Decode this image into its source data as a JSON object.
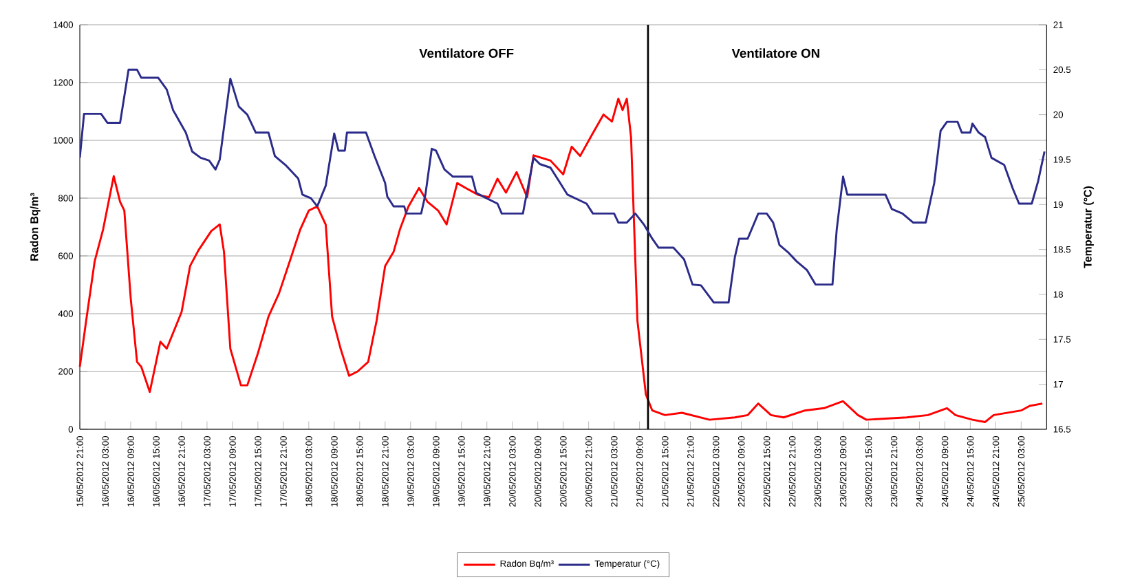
{
  "chart_data": {
    "type": "line",
    "ylabel": "Radon Bq/m³",
    "y2label": "Temperatur (°C)",
    "xlim": [
      "2012-05-15T21:00",
      "2012-05-25T09:00"
    ],
    "ylim": [
      0,
      1400
    ],
    "yticks": [
      0,
      200,
      400,
      600,
      800,
      1000,
      1200,
      1400
    ],
    "y2lim": [
      16.5,
      21
    ],
    "y2ticks": [
      16.5,
      17,
      17.5,
      18,
      18.5,
      19,
      19.5,
      20,
      20.5,
      21
    ],
    "xticks": [
      {
        "value": "2012-05-15T21:00",
        "label": "15/05/2012 21:00"
      },
      {
        "value": "2012-05-16T03:00",
        "label": "16/05/2012 03:00"
      },
      {
        "value": "2012-05-16T09:00",
        "label": "16/05/2012 09:00"
      },
      {
        "value": "2012-05-16T15:00",
        "label": "16/05/2012 15:00"
      },
      {
        "value": "2012-05-16T21:00",
        "label": "16/05/2012 21:00"
      },
      {
        "value": "2012-05-17T03:00",
        "label": "17/05/2012 03:00"
      },
      {
        "value": "2012-05-17T09:00",
        "label": "17/05/2012 09:00"
      },
      {
        "value": "2012-05-17T15:00",
        "label": "17/05/2012 15:00"
      },
      {
        "value": "2012-05-17T21:00",
        "label": "17/05/2012 21:00"
      },
      {
        "value": "2012-05-18T03:00",
        "label": "18/05/2012 03:00"
      },
      {
        "value": "2012-05-18T09:00",
        "label": "18/05/2012 09:00"
      },
      {
        "value": "2012-05-18T15:00",
        "label": "18/05/2012 15:00"
      },
      {
        "value": "2012-05-18T21:00",
        "label": "18/05/2012 21:00"
      },
      {
        "value": "2012-05-19T03:00",
        "label": "19/05/2012 03:00"
      },
      {
        "value": "2012-05-19T09:00",
        "label": "19/05/2012 09:00"
      },
      {
        "value": "2012-05-19T15:00",
        "label": "19/05/2012 15:00"
      },
      {
        "value": "2012-05-19T21:00",
        "label": "19/05/2012 21:00"
      },
      {
        "value": "2012-05-20T03:00",
        "label": "20/05/2012 03:00"
      },
      {
        "value": "2012-05-20T09:00",
        "label": "20/05/2012 09:00"
      },
      {
        "value": "2012-05-20T15:00",
        "label": "20/05/2012 15:00"
      },
      {
        "value": "2012-05-20T21:00",
        "label": "20/05/2012 21:00"
      },
      {
        "value": "2012-05-21T03:00",
        "label": "21/05/2012 03:00"
      },
      {
        "value": "2012-05-21T09:00",
        "label": "21/05/2012 09:00"
      },
      {
        "value": "2012-05-21T15:00",
        "label": "21/05/2012 15:00"
      },
      {
        "value": "2012-05-21T21:00",
        "label": "21/05/2012 21:00"
      },
      {
        "value": "2012-05-22T03:00",
        "label": "22/05/2012 03:00"
      },
      {
        "value": "2012-05-22T09:00",
        "label": "22/05/2012 09:00"
      },
      {
        "value": "2012-05-22T15:00",
        "label": "22/05/2012 15:00"
      },
      {
        "value": "2012-05-22T21:00",
        "label": "22/05/2012 21:00"
      },
      {
        "value": "2012-05-23T03:00",
        "label": "23/05/2012 03:00"
      },
      {
        "value": "2012-05-23T09:00",
        "label": "23/05/2012 09:00"
      },
      {
        "value": "2012-05-23T15:00",
        "label": "23/05/2012 15:00"
      },
      {
        "value": "2012-05-23T21:00",
        "label": "23/05/2012 21:00"
      },
      {
        "value": "2012-05-24T03:00",
        "label": "24/05/2012 03:00"
      },
      {
        "value": "2012-05-24T09:00",
        "label": "24/05/2012 09:00"
      },
      {
        "value": "2012-05-24T15:00",
        "label": "24/05/2012 15:00"
      },
      {
        "value": "2012-05-24T21:00",
        "label": "24/05/2012 21:00"
      },
      {
        "value": "2012-05-25T03:00",
        "label": "25/05/2012 03:00"
      }
    ],
    "grid": "y",
    "legend": "bottom",
    "annotations": [
      "Ventilatore OFF",
      "Ventilatore ON"
    ],
    "ref_lines": [
      {
        "axis": "x",
        "value": "2012-05-21T11:00",
        "color": "#000000"
      }
    ],
    "series": [
      {
        "name": "Radon Bq/m³",
        "color": "#ff0000",
        "x": [
          "2012-05-15T21:00",
          "2012-05-15T22:30",
          "2012-05-16T00:30",
          "2012-05-16T02:30",
          "2012-05-16T04:00",
          "2012-05-16T05:00",
          "2012-05-16T06:30",
          "2012-05-16T07:30",
          "2012-05-16T09:00",
          "2012-05-16T10:30",
          "2012-05-16T11:30",
          "2012-05-16T13:30",
          "2012-05-16T16:00",
          "2012-05-16T17:30",
          "2012-05-16T21:00",
          "2012-05-16T23:00",
          "2012-05-17T01:00",
          "2012-05-17T04:00",
          "2012-05-17T06:00",
          "2012-05-17T07:00",
          "2012-05-17T08:30",
          "2012-05-17T11:00",
          "2012-05-17T12:30",
          "2012-05-17T15:00",
          "2012-05-17T17:30",
          "2012-05-17T20:00",
          "2012-05-17T22:30",
          "2012-05-18T01:00",
          "2012-05-18T03:00",
          "2012-05-18T05:00",
          "2012-05-18T07:00",
          "2012-05-18T08:30",
          "2012-05-18T10:30",
          "2012-05-18T12:30",
          "2012-05-18T14:30",
          "2012-05-18T17:00",
          "2012-05-18T19:00",
          "2012-05-18T21:00",
          "2012-05-18T23:00",
          "2012-05-19T00:30",
          "2012-05-19T02:30",
          "2012-05-19T05:00",
          "2012-05-19T07:00",
          "2012-05-19T09:30",
          "2012-05-19T11:30",
          "2012-05-19T14:00",
          "2012-05-19T16:00",
          "2012-05-19T19:00",
          "2012-05-19T21:30",
          "2012-05-19T23:30",
          "2012-05-20T01:30",
          "2012-05-20T04:00",
          "2012-05-20T06:30",
          "2012-05-20T08:00",
          "2012-05-20T12:00",
          "2012-05-20T15:00",
          "2012-05-20T17:00",
          "2012-05-20T19:00",
          "2012-05-20T22:00",
          "2012-05-21T00:30",
          "2012-05-21T02:30",
          "2012-05-21T04:00",
          "2012-05-21T05:00",
          "2012-05-21T06:00",
          "2012-05-21T07:00",
          "2012-05-21T08:30",
          "2012-05-21T10:30",
          "2012-05-21T12:00",
          "2012-05-21T15:00",
          "2012-05-21T19:00",
          "2012-05-22T01:30",
          "2012-05-22T07:30",
          "2012-05-22T10:30",
          "2012-05-22T13:00",
          "2012-05-22T16:00",
          "2012-05-22T19:00",
          "2012-05-23T00:00",
          "2012-05-23T04:30",
          "2012-05-23T09:00",
          "2012-05-23T12:30",
          "2012-05-23T14:30",
          "2012-05-24T00:00",
          "2012-05-24T05:00",
          "2012-05-24T09:30",
          "2012-05-24T11:30",
          "2012-05-24T15:30",
          "2012-05-24T18:30",
          "2012-05-24T20:30",
          "2012-05-25T03:00",
          "2012-05-25T05:00",
          "2012-05-25T08:00"
        ],
        "values": [
          216,
          376,
          581,
          692,
          803,
          876,
          787,
          757,
          454,
          233,
          216,
          129,
          303,
          279,
          406,
          565,
          620,
          686,
          709,
          614,
          279,
          152,
          152,
          263,
          390,
          471,
          581,
          692,
          757,
          771,
          708,
          390,
          279,
          185,
          200,
          233,
          376,
          565,
          614,
          692,
          771,
          835,
          787,
          757,
          709,
          852,
          835,
          811,
          803,
          867,
          819,
          890,
          803,
          948,
          930,
          882,
          978,
          946,
          1025,
          1089,
          1065,
          1144,
          1105,
          1144,
          1010,
          376,
          120,
          65,
          49,
          57,
          33,
          41,
          49,
          89,
          49,
          41,
          65,
          73,
          97,
          49,
          33,
          41,
          49,
          73,
          49,
          33,
          25,
          49,
          65,
          81,
          89
        ]
      },
      {
        "name": "Temperatur (°C)",
        "color": "#2b2b8a",
        "axis": "y2",
        "x": [
          "2012-05-15T21:00",
          "2012-05-15T22:00",
          "2012-05-16T02:00",
          "2012-05-16T03:30",
          "2012-05-16T06:30",
          "2012-05-16T08:30",
          "2012-05-16T10:30",
          "2012-05-16T11:30",
          "2012-05-16T15:30",
          "2012-05-16T17:30",
          "2012-05-16T19:00",
          "2012-05-16T22:00",
          "2012-05-16T23:30",
          "2012-05-17T01:30",
          "2012-05-17T03:30",
          "2012-05-17T05:00",
          "2012-05-17T06:00",
          "2012-05-17T08:30",
          "2012-05-17T10:30",
          "2012-05-17T12:30",
          "2012-05-17T14:30",
          "2012-05-17T17:30",
          "2012-05-17T19:00",
          "2012-05-17T21:30",
          "2012-05-18T00:30",
          "2012-05-18T01:30",
          "2012-05-18T03:30",
          "2012-05-18T05:00",
          "2012-05-18T07:00",
          "2012-05-18T09:00",
          "2012-05-18T10:00",
          "2012-05-18T11:30",
          "2012-05-18T12:00",
          "2012-05-18T16:30",
          "2012-05-18T18:30",
          "2012-05-18T21:00",
          "2012-05-18T21:30",
          "2012-05-18T23:00",
          "2012-05-19T01:30",
          "2012-05-19T02:00",
          "2012-05-19T05:30",
          "2012-05-19T06:30",
          "2012-05-19T08:00",
          "2012-05-19T09:00",
          "2012-05-19T11:00",
          "2012-05-19T13:00",
          "2012-05-19T17:30",
          "2012-05-19T18:30",
          "2012-05-19T20:30",
          "2012-05-19T23:30",
          "2012-05-20T00:30",
          "2012-05-20T05:30",
          "2012-05-20T08:00",
          "2012-05-20T09:30",
          "2012-05-20T12:00",
          "2012-05-20T14:00",
          "2012-05-20T16:00",
          "2012-05-20T20:30",
          "2012-05-20T22:00",
          "2012-05-21T03:00",
          "2012-05-21T04:00",
          "2012-05-21T06:00",
          "2012-05-21T08:00",
          "2012-05-21T10:00",
          "2012-05-21T12:00",
          "2012-05-21T13:30",
          "2012-05-21T17:00",
          "2012-05-21T19:30",
          "2012-05-21T21:30",
          "2012-05-21T23:30",
          "2012-05-22T02:30",
          "2012-05-22T06:00",
          "2012-05-22T07:30",
          "2012-05-22T08:30",
          "2012-05-22T10:30",
          "2012-05-22T13:00",
          "2012-05-22T15:00",
          "2012-05-22T16:30",
          "2012-05-22T18:00",
          "2012-05-22T20:00",
          "2012-05-22T22:00",
          "2012-05-23T00:30",
          "2012-05-23T02:30",
          "2012-05-23T06:30",
          "2012-05-23T07:30",
          "2012-05-23T09:00",
          "2012-05-23T10:00",
          "2012-05-23T19:00",
          "2012-05-23T20:30",
          "2012-05-23T23:00",
          "2012-05-24T01:30",
          "2012-05-24T04:30",
          "2012-05-24T06:30",
          "2012-05-24T08:00",
          "2012-05-24T09:30",
          "2012-05-24T12:00",
          "2012-05-24T13:00",
          "2012-05-24T15:00",
          "2012-05-24T15:30",
          "2012-05-24T17:00",
          "2012-05-24T18:30",
          "2012-05-24T20:00",
          "2012-05-24T23:00",
          "2012-05-25T01:00",
          "2012-05-25T02:30",
          "2012-05-25T05:30",
          "2012-05-25T07:00",
          "2012-05-25T08:30"
        ],
        "values": [
          19.52,
          20.01,
          20.01,
          19.91,
          19.91,
          20.5,
          20.5,
          20.41,
          20.41,
          20.28,
          20.05,
          19.8,
          19.59,
          19.52,
          19.49,
          19.39,
          19.5,
          20.4,
          20.09,
          20,
          19.8,
          19.8,
          19.54,
          19.44,
          19.29,
          19.11,
          19.07,
          18.98,
          19.21,
          19.79,
          19.6,
          19.6,
          19.8,
          19.8,
          19.54,
          19.24,
          19.09,
          18.98,
          18.98,
          18.9,
          18.9,
          19.11,
          19.62,
          19.6,
          19.39,
          19.31,
          19.31,
          19.13,
          19.08,
          19.01,
          18.9,
          18.9,
          19.52,
          19.45,
          19.41,
          19.26,
          19.11,
          19.01,
          18.9,
          18.9,
          18.8,
          18.8,
          18.9,
          18.78,
          18.62,
          18.52,
          18.52,
          18.39,
          18.11,
          18.1,
          17.91,
          17.91,
          18.42,
          18.62,
          18.62,
          18.9,
          18.9,
          18.8,
          18.55,
          18.47,
          18.37,
          18.27,
          18.11,
          18.11,
          18.72,
          19.31,
          19.11,
          19.11,
          18.95,
          18.9,
          18.8,
          18.8,
          19.24,
          19.82,
          19.92,
          19.92,
          19.8,
          19.8,
          19.9,
          19.8,
          19.75,
          19.52,
          19.44,
          19.18,
          19.01,
          19.01,
          19.26,
          19.59
        ]
      }
    ]
  }
}
